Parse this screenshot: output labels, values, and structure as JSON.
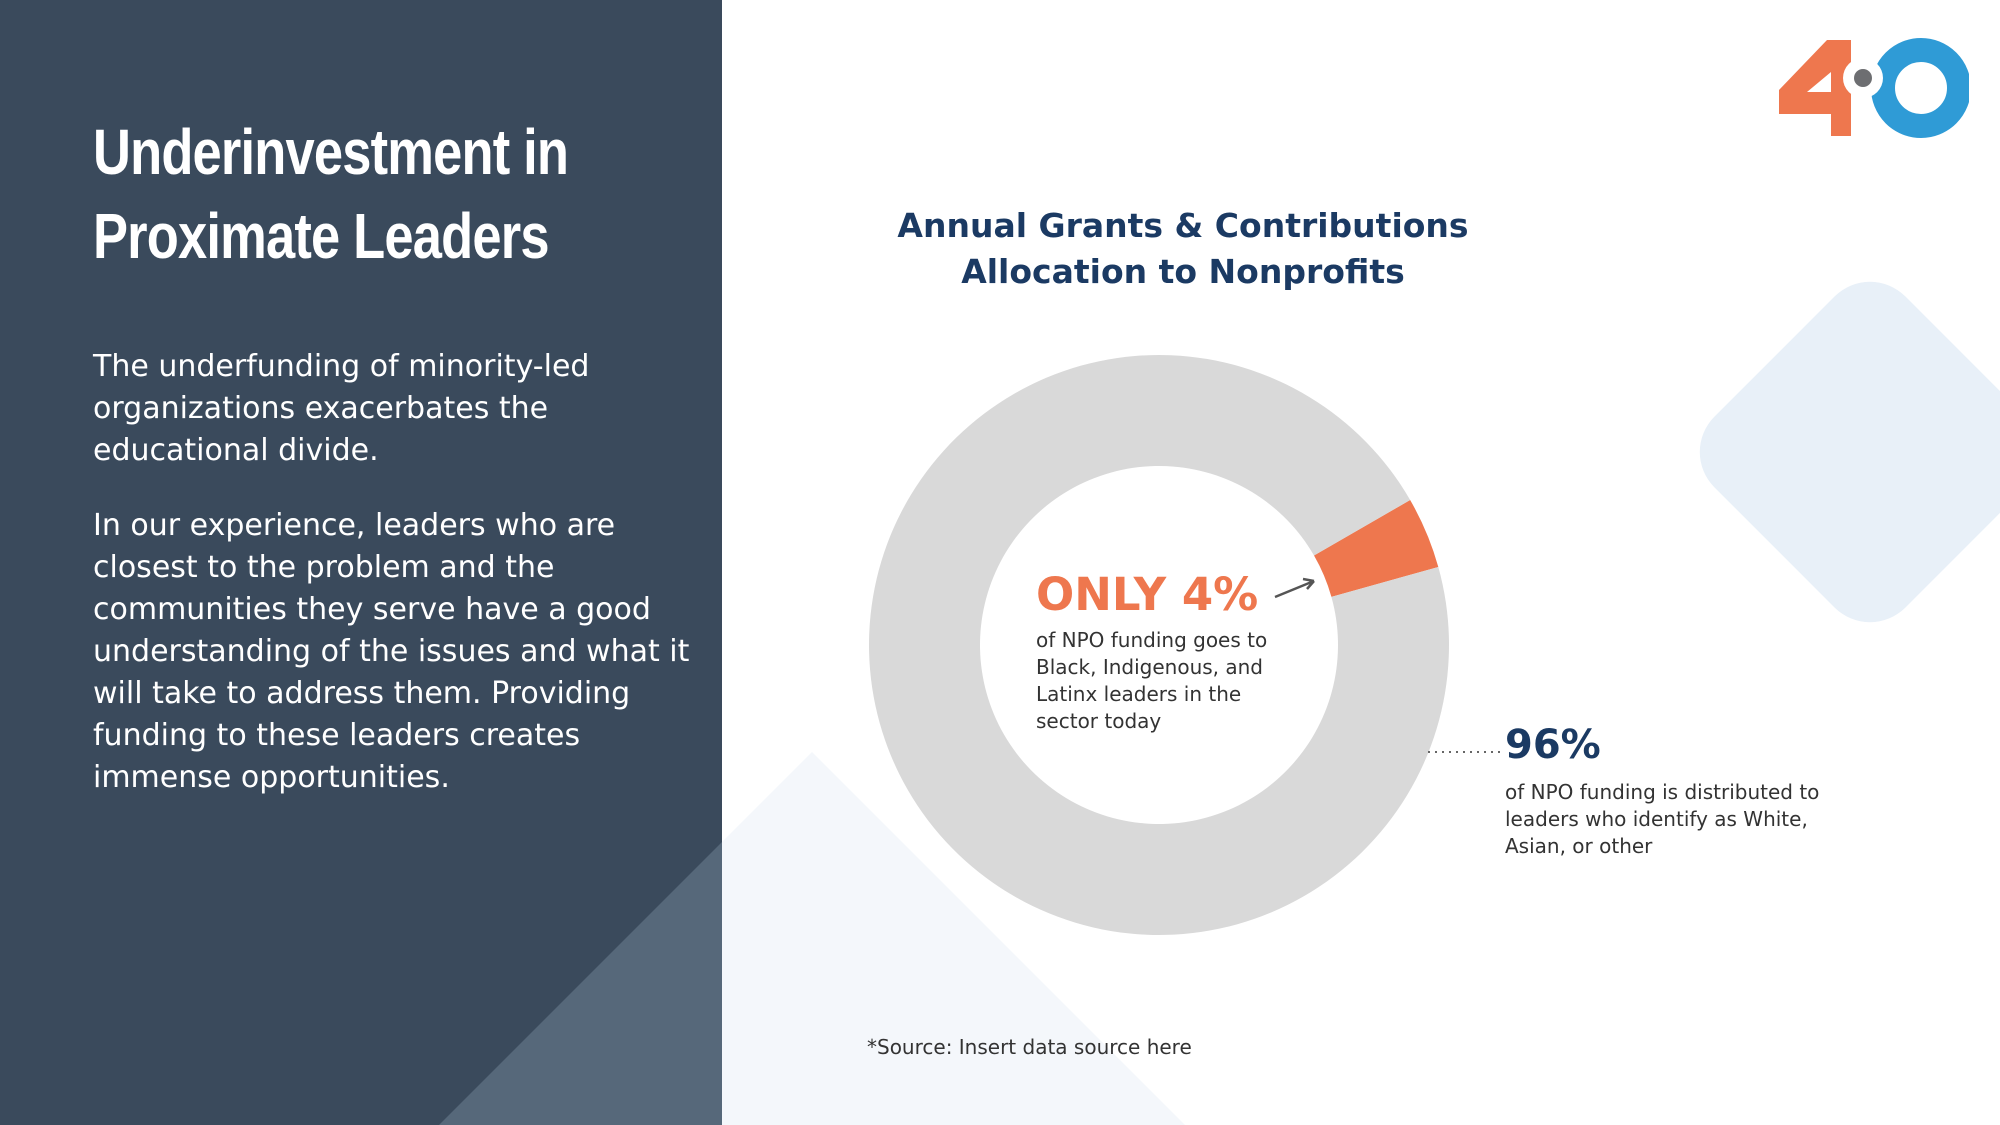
{
  "left": {
    "title": "Underinvestment in Proximate Leaders",
    "paragraph1": "The underfunding of minority-led organizations exacerbates the educational divide.",
    "paragraph2": "In our experience, leaders who are closest to the problem and the communities they serve have a good understanding of the issues and what it will take to address them. Providing funding to these leaders creates immense opportunities."
  },
  "logo": {
    "text": "40"
  },
  "chart_data": {
    "type": "pie",
    "variant": "donut",
    "title": "Annual Grants & Contributions Allocation to Nonprofits",
    "slices": [
      {
        "label": "Black, Indigenous, and Latinx leaders",
        "value": 4,
        "color": "#ee774e"
      },
      {
        "label": "White, Asian, or other",
        "value": 96,
        "color": "#d9d9d9"
      }
    ],
    "annotations": {
      "minority_value": "ONLY 4%",
      "minority_text": "of NPO funding goes to Black, Indigenous, and Latinx leaders in the sector today",
      "majority_value": "96%",
      "majority_text": "of NPO funding is distributed to leaders who identify as White, Asian, or other"
    },
    "source": "*Source: Insert data source here"
  }
}
